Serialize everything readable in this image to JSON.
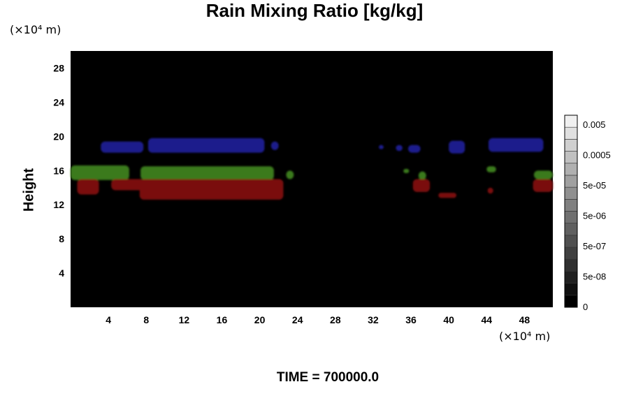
{
  "title": "Rain Mixing Ratio [kg/kg]",
  "y_unit_label": "(×10⁴ m)",
  "x_unit_label": "(×10⁴ m)",
  "ylabel": "Height",
  "time_label": "TIME = 700000.0",
  "chart_data": {
    "type": "heatmap",
    "title": "Rain Mixing Ratio [kg/kg]",
    "ylabel": "Height",
    "x_unit": "×10⁴ m",
    "y_unit": "×10⁴ m",
    "xlim": [
      0,
      51
    ],
    "ylim": [
      0,
      30
    ],
    "x_ticks": [
      4,
      8,
      12,
      16,
      20,
      24,
      28,
      32,
      36,
      40,
      44,
      48
    ],
    "y_ticks": [
      4,
      8,
      12,
      16,
      20,
      24,
      28
    ],
    "background_color": "#000000",
    "regions": [
      {
        "color": "#1c1c8c",
        "x": [
          3.2,
          7.7
        ],
        "y": [
          18.1,
          19.4
        ]
      },
      {
        "color": "#1c1c8c",
        "x": [
          8.2,
          20.5
        ],
        "y": [
          18.1,
          19.8
        ]
      },
      {
        "color": "#1c1c8c",
        "x": [
          21.2,
          22.0
        ],
        "y": [
          18.4,
          19.4
        ]
      },
      {
        "color": "#1c1c8c",
        "x": [
          32.6,
          33.1
        ],
        "y": [
          18.5,
          19.0
        ]
      },
      {
        "color": "#1c1c8c",
        "x": [
          34.4,
          35.1
        ],
        "y": [
          18.3,
          19.0
        ]
      },
      {
        "color": "#1c1c8c",
        "x": [
          35.7,
          37.0
        ],
        "y": [
          18.1,
          19.0
        ]
      },
      {
        "color": "#1c1c8c",
        "x": [
          40.0,
          41.7
        ],
        "y": [
          18.0,
          19.5
        ]
      },
      {
        "color": "#1c1c8c",
        "x": [
          44.2,
          50.0
        ],
        "y": [
          18.2,
          19.8
        ]
      },
      {
        "color": "#3a7a1a",
        "x": [
          0,
          6.2
        ],
        "y": [
          14.9,
          16.6
        ]
      },
      {
        "color": "#3a7a1a",
        "x": [
          7.4,
          21.5
        ],
        "y": [
          14.9,
          16.5
        ]
      },
      {
        "color": "#3a7a1a",
        "x": [
          22.8,
          23.6
        ],
        "y": [
          15.0,
          16.0
        ]
      },
      {
        "color": "#3a7a1a",
        "x": [
          35.2,
          35.8
        ],
        "y": [
          15.7,
          16.2
        ]
      },
      {
        "color": "#3a7a1a",
        "x": [
          36.8,
          37.6
        ],
        "y": [
          14.9,
          15.9
        ]
      },
      {
        "color": "#3a7a1a",
        "x": [
          44.0,
          45.0
        ],
        "y": [
          15.8,
          16.5
        ]
      },
      {
        "color": "#3a7a1a",
        "x": [
          49.0,
          51.0
        ],
        "y": [
          15.0,
          16.0
        ]
      },
      {
        "color": "#7a0e0e",
        "x": [
          0.7,
          3.0
        ],
        "y": [
          13.2,
          15.0
        ]
      },
      {
        "color": "#7a0e0e",
        "x": [
          4.3,
          7.8
        ],
        "y": [
          13.7,
          15.0
        ]
      },
      {
        "color": "#7a0e0e",
        "x": [
          7.3,
          22.5
        ],
        "y": [
          12.6,
          15.0
        ]
      },
      {
        "color": "#7a0e0e",
        "x": [
          36.2,
          38.0
        ],
        "y": [
          13.5,
          15.0
        ]
      },
      {
        "color": "#7a0e0e",
        "x": [
          38.9,
          40.8
        ],
        "y": [
          12.8,
          13.4
        ]
      },
      {
        "color": "#7a0e0e",
        "x": [
          44.1,
          44.7
        ],
        "y": [
          13.3,
          14.0
        ]
      },
      {
        "color": "#7a0e0e",
        "x": [
          48.9,
          51.0
        ],
        "y": [
          13.5,
          15.0
        ]
      }
    ],
    "colorbar": {
      "labels": [
        "0.005",
        "0.0005",
        "5e-05",
        "5e-06",
        "5e-07",
        "5e-08",
        "0"
      ],
      "min_color": "#000000",
      "max_color": "#f0f0f0",
      "levels": 16
    }
  }
}
